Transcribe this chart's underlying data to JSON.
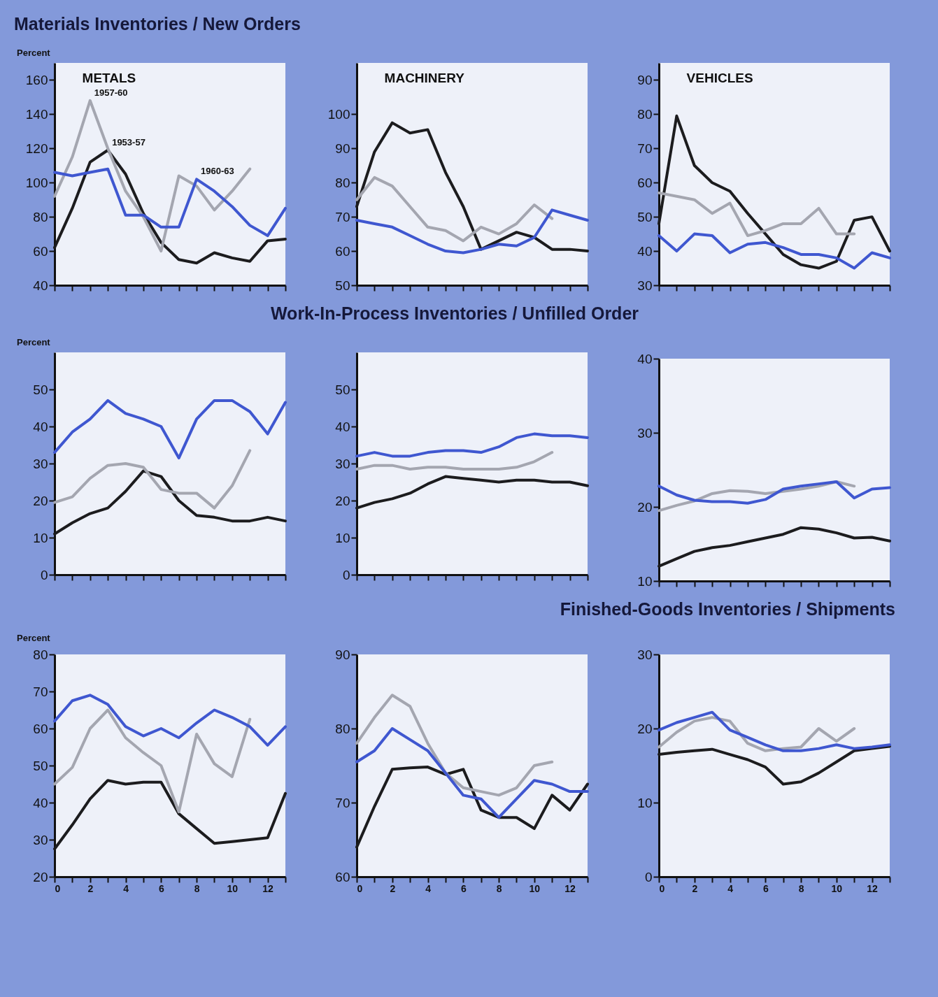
{
  "chart_data": [
    {
      "type": "line",
      "title": "Materials Inventories / New Orders",
      "subtitle": "METALS",
      "ylabel": "Percent",
      "x": [
        0,
        1,
        2,
        3,
        4,
        5,
        6,
        7,
        8,
        9,
        10,
        11,
        12,
        13
      ],
      "xlim": [
        0,
        13
      ],
      "xticks": [
        0,
        {
          "value": 1,
          "label": null
        },
        2,
        {
          "value": 3,
          "label": null
        },
        4,
        {
          "value": 5,
          "label": null
        },
        6,
        {
          "value": 7,
          "label": null
        },
        8,
        {
          "value": 9,
          "label": null
        },
        10,
        {
          "value": 11,
          "label": null
        },
        12,
        {
          "value": 13,
          "label": null
        }
      ],
      "ylim": [
        40,
        170
      ],
      "yticks": [
        40,
        60,
        80,
        100,
        120,
        140,
        160
      ],
      "tick_labels": "y",
      "annotations": [
        {
          "text": "1957-60",
          "x": 2,
          "y": 148
        },
        {
          "text": "1953-57",
          "x": 3,
          "y": 119
        },
        {
          "text": "1960-63",
          "x": 8,
          "y": 102
        }
      ],
      "series": [
        {
          "color": "#1c1c1e",
          "values": [
            62,
            85,
            112,
            119,
            105,
            82,
            65,
            55,
            53,
            59,
            56,
            54,
            66,
            67
          ]
        },
        {
          "color": "#a4a6b0",
          "values": [
            92,
            115,
            148,
            120,
            95,
            80,
            60,
            104,
            98,
            84,
            95,
            108,
            null,
            null
          ]
        },
        {
          "color": "#3f57d0",
          "values": [
            106,
            104,
            106,
            108,
            81,
            81,
            74,
            74,
            102,
            95,
            86,
            75,
            69,
            85
          ]
        }
      ]
    },
    {
      "type": "line",
      "subtitle": "MACHINERY",
      "x": [
        0,
        1,
        2,
        3,
        4,
        5,
        6,
        7,
        8,
        9,
        10,
        11,
        12,
        13
      ],
      "xlim": [
        0,
        13
      ],
      "xticks": [
        0,
        {
          "value": 1,
          "label": null
        },
        2,
        {
          "value": 3,
          "label": null
        },
        4,
        {
          "value": 5,
          "label": null
        },
        6,
        {
          "value": 7,
          "label": null
        },
        8,
        {
          "value": 9,
          "label": null
        },
        10,
        {
          "value": 11,
          "label": null
        },
        12,
        {
          "value": 13,
          "label": null
        }
      ],
      "ylim": [
        50,
        115
      ],
      "yticks": [
        50,
        60,
        70,
        80,
        90,
        100
      ],
      "tick_labels": "y",
      "series": [
        {
          "color": "#1c1c1e",
          "values": [
            73,
            89,
            97.5,
            94.5,
            95.5,
            83,
            73,
            60.5,
            63,
            65.5,
            64,
            60.5,
            60.5,
            60
          ]
        },
        {
          "color": "#a4a6b0",
          "values": [
            75,
            81.5,
            79,
            73,
            67,
            66,
            63,
            67,
            65,
            68,
            73.5,
            69.5,
            null,
            null
          ]
        },
        {
          "color": "#3f57d0",
          "values": [
            69,
            68,
            67,
            64.5,
            62,
            60,
            59.5,
            60.5,
            62,
            61.5,
            64,
            72,
            70.5,
            69
          ]
        }
      ]
    },
    {
      "type": "line",
      "subtitle": "VEHICLES",
      "x": [
        0,
        1,
        2,
        3,
        4,
        5,
        6,
        7,
        8,
        9,
        10,
        11,
        12,
        13
      ],
      "xlim": [
        0,
        13
      ],
      "xticks": [
        0,
        {
          "value": 1,
          "label": null
        },
        2,
        {
          "value": 3,
          "label": null
        },
        4,
        {
          "value": 5,
          "label": null
        },
        6,
        {
          "value": 7,
          "label": null
        },
        8,
        {
          "value": 9,
          "label": null
        },
        10,
        {
          "value": 11,
          "label": null
        },
        12,
        {
          "value": 13,
          "label": null
        }
      ],
      "ylim": [
        30,
        95
      ],
      "yticks": [
        30,
        40,
        50,
        60,
        70,
        80,
        90
      ],
      "tick_labels": "y",
      "series": [
        {
          "color": "#1c1c1e",
          "values": [
            48,
            79.5,
            65,
            60,
            57.5,
            51,
            45,
            39,
            36,
            35,
            37,
            49,
            50,
            40
          ]
        },
        {
          "color": "#a4a6b0",
          "values": [
            57,
            56,
            55,
            51,
            54,
            44.5,
            46,
            48,
            48,
            52.5,
            45,
            45,
            null,
            null
          ]
        },
        {
          "color": "#3f57d0",
          "values": [
            44.5,
            40,
            45,
            44.5,
            39.5,
            42,
            42.5,
            41,
            39,
            39,
            38,
            35,
            39.5,
            38
          ]
        }
      ]
    },
    {
      "type": "line",
      "ylabel": "Percent",
      "x": [
        0,
        1,
        2,
        3,
        4,
        5,
        6,
        7,
        8,
        9,
        10,
        11,
        12,
        13
      ],
      "xlim": [
        0,
        13
      ],
      "xticks": [
        0,
        {
          "value": 1,
          "label": null
        },
        2,
        {
          "value": 3,
          "label": null
        },
        4,
        {
          "value": 5,
          "label": null
        },
        6,
        {
          "value": 7,
          "label": null
        },
        8,
        {
          "value": 9,
          "label": null
        },
        10,
        {
          "value": 11,
          "label": null
        },
        12,
        {
          "value": 13,
          "label": null
        }
      ],
      "ylim": [
        0,
        60
      ],
      "yticks": [
        0,
        10,
        20,
        30,
        40,
        50
      ],
      "tick_labels": "y",
      "series": [
        {
          "color": "#1c1c1e",
          "values": [
            11,
            14,
            16.5,
            18,
            22.5,
            28,
            26.5,
            20,
            16,
            15.5,
            14.5,
            14.5,
            15.5,
            14.5
          ]
        },
        {
          "color": "#a4a6b0",
          "values": [
            19.5,
            21,
            26,
            29.5,
            30,
            29,
            23,
            22,
            22,
            18,
            24,
            33.5,
            null,
            null
          ]
        },
        {
          "color": "#3f57d0",
          "values": [
            33,
            38.5,
            42,
            47,
            43.5,
            42,
            40,
            31.5,
            42,
            47,
            47,
            44,
            38,
            46.5
          ]
        }
      ]
    },
    {
      "type": "line",
      "title": "Work-In-Process Inventories / Unfilled Order",
      "x": [
        0,
        1,
        2,
        3,
        4,
        5,
        6,
        7,
        8,
        9,
        10,
        11,
        12,
        13
      ],
      "xlim": [
        0,
        13
      ],
      "xticks": [
        0,
        {
          "value": 1,
          "label": null
        },
        2,
        {
          "value": 3,
          "label": null
        },
        4,
        {
          "value": 5,
          "label": null
        },
        6,
        {
          "value": 7,
          "label": null
        },
        8,
        {
          "value": 9,
          "label": null
        },
        10,
        {
          "value": 11,
          "label": null
        },
        12,
        {
          "value": 13,
          "label": null
        }
      ],
      "ylim": [
        0,
        60
      ],
      "yticks": [
        0,
        10,
        20,
        30,
        40,
        50
      ],
      "tick_labels": "y",
      "series": [
        {
          "color": "#1c1c1e",
          "values": [
            18,
            19.5,
            20.5,
            22,
            24.5,
            26.5,
            26,
            25.5,
            25,
            25.5,
            25.5,
            25,
            25,
            24
          ]
        },
        {
          "color": "#a4a6b0",
          "values": [
            28.5,
            29.5,
            29.5,
            28.5,
            29,
            29,
            28.5,
            28.5,
            28.5,
            29,
            30.5,
            33,
            null,
            null
          ]
        },
        {
          "color": "#3f57d0",
          "values": [
            32,
            33,
            32,
            32,
            33,
            33.5,
            33.5,
            33,
            34.5,
            37,
            38,
            37.5,
            37.5,
            37
          ]
        }
      ]
    },
    {
      "type": "line",
      "x": [
        0,
        1,
        2,
        3,
        4,
        5,
        6,
        7,
        8,
        9,
        10,
        11,
        12,
        13
      ],
      "xlim": [
        0,
        13
      ],
      "xticks": [
        0,
        {
          "value": 1,
          "label": null
        },
        2,
        {
          "value": 3,
          "label": null
        },
        4,
        {
          "value": 5,
          "label": null
        },
        6,
        {
          "value": 7,
          "label": null
        },
        8,
        {
          "value": 9,
          "label": null
        },
        10,
        {
          "value": 11,
          "label": null
        },
        12,
        {
          "value": 13,
          "label": null
        }
      ],
      "ylim": [
        10,
        40
      ],
      "yticks": [
        10,
        20,
        30,
        40
      ],
      "tick_labels": "y",
      "series": [
        {
          "color": "#1c1c1e",
          "values": [
            12,
            13,
            14,
            14.5,
            14.8,
            15.3,
            15.8,
            16.3,
            17.2,
            17,
            16.5,
            15.8,
            15.9,
            15.4
          ]
        },
        {
          "color": "#a4a6b0",
          "values": [
            19.5,
            20.2,
            20.8,
            21.8,
            22.2,
            22.1,
            21.8,
            22.1,
            22.4,
            22.8,
            23.4,
            22.8,
            null,
            null
          ]
        },
        {
          "color": "#3f57d0",
          "values": [
            22.8,
            21.6,
            20.9,
            20.7,
            20.7,
            20.5,
            21,
            22.4,
            22.8,
            23.1,
            23.4,
            21.2,
            22.4,
            22.6
          ]
        }
      ]
    },
    {
      "type": "line",
      "ylabel": "Percent",
      "x": [
        0,
        1,
        2,
        3,
        4,
        5,
        6,
        7,
        8,
        9,
        10,
        11,
        12,
        13
      ],
      "xlim": [
        0,
        13
      ],
      "xticks": [
        0,
        {
          "value": 1,
          "label": null
        },
        2,
        {
          "value": 3,
          "label": null
        },
        4,
        {
          "value": 5,
          "label": null
        },
        6,
        {
          "value": 7,
          "label": null
        },
        8,
        {
          "value": 9,
          "label": null
        },
        10,
        {
          "value": 11,
          "label": null
        },
        12,
        {
          "value": 13,
          "label": null
        }
      ],
      "ylim": [
        20,
        80
      ],
      "yticks": [
        20,
        30,
        40,
        50,
        60,
        70,
        80
      ],
      "series": [
        {
          "color": "#1c1c1e",
          "values": [
            27.5,
            34,
            41,
            46,
            45,
            45.5,
            45.5,
            37,
            33,
            29,
            29.5,
            30,
            30.5,
            42.5
          ]
        },
        {
          "color": "#a4a6b0",
          "values": [
            45,
            49.5,
            60,
            65,
            57.5,
            53.5,
            50,
            37.5,
            58.5,
            50.5,
            47,
            62.5,
            null,
            null
          ]
        },
        {
          "color": "#3f57d0",
          "values": [
            62,
            67.5,
            69,
            66.5,
            60.5,
            58,
            60,
            57.5,
            61.5,
            65,
            63,
            60.5,
            55.5,
            60.5
          ]
        }
      ]
    },
    {
      "type": "line",
      "x": [
        0,
        1,
        2,
        3,
        4,
        5,
        6,
        7,
        8,
        9,
        10,
        11,
        12,
        13
      ],
      "xlim": [
        0,
        13
      ],
      "xticks": [
        0,
        {
          "value": 1,
          "label": null
        },
        2,
        {
          "value": 3,
          "label": null
        },
        4,
        {
          "value": 5,
          "label": null
        },
        6,
        {
          "value": 7,
          "label": null
        },
        8,
        {
          "value": 9,
          "label": null
        },
        10,
        {
          "value": 11,
          "label": null
        },
        12,
        {
          "value": 13,
          "label": null
        }
      ],
      "ylim": [
        60,
        90
      ],
      "yticks": [
        60,
        70,
        80,
        90
      ],
      "series": [
        {
          "color": "#1c1c1e",
          "values": [
            64,
            69.5,
            74.5,
            74.7,
            74.8,
            73.8,
            74.5,
            69,
            68,
            68,
            66.5,
            71,
            69,
            72.5
          ]
        },
        {
          "color": "#a4a6b0",
          "values": [
            78,
            81.5,
            84.5,
            83,
            78,
            74,
            72,
            71.5,
            71,
            72,
            75,
            75.5,
            null,
            null
          ]
        },
        {
          "color": "#3f57d0",
          "values": [
            75.5,
            77,
            80,
            78.5,
            77,
            74,
            71,
            70.5,
            68,
            70.5,
            73,
            72.5,
            71.5,
            71.5
          ]
        }
      ]
    },
    {
      "type": "line",
      "title": "Finished-Goods Inventories / Shipments",
      "x": [
        0,
        1,
        2,
        3,
        4,
        5,
        6,
        7,
        8,
        9,
        10,
        11,
        12,
        13
      ],
      "xlim": [
        0,
        13
      ],
      "xticks": [
        0,
        {
          "value": 1,
          "label": null
        },
        2,
        {
          "value": 3,
          "label": null
        },
        4,
        {
          "value": 5,
          "label": null
        },
        6,
        {
          "value": 7,
          "label": null
        },
        8,
        {
          "value": 9,
          "label": null
        },
        10,
        {
          "value": 11,
          "label": null
        },
        12,
        {
          "value": 13,
          "label": null
        }
      ],
      "ylim": [
        0,
        30
      ],
      "yticks": [
        0,
        10,
        20,
        30
      ],
      "series": [
        {
          "color": "#1c1c1e",
          "values": [
            16.5,
            16.8,
            17,
            17.2,
            16.5,
            15.8,
            14.8,
            12.5,
            12.8,
            14,
            15.5,
            17,
            17.3,
            17.6
          ]
        },
        {
          "color": "#a4a6b0",
          "values": [
            17.5,
            19.5,
            21,
            21.5,
            21,
            18,
            17,
            17.3,
            17.5,
            20,
            18.3,
            20,
            null,
            null
          ]
        },
        {
          "color": "#3f57d0",
          "values": [
            19.8,
            20.8,
            21.5,
            22.2,
            19.8,
            18.8,
            17.8,
            17,
            17,
            17.3,
            17.8,
            17.3,
            17.5,
            17.8
          ]
        }
      ]
    }
  ]
}
